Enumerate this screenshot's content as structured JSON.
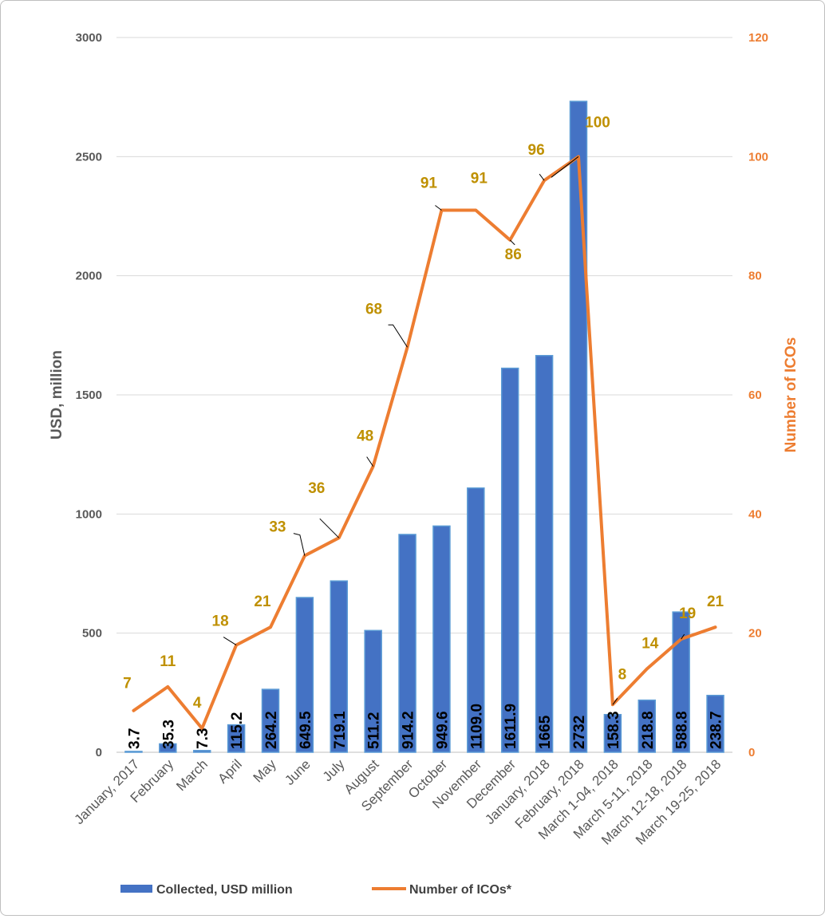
{
  "chart_data": {
    "type": "bar+line",
    "categories": [
      "January, 2017",
      "February",
      "March",
      "April",
      "May",
      "June",
      "July",
      "August",
      "September",
      "October",
      "November",
      "December",
      "January, 2018",
      "February, 2018",
      "March 1-04, 2018",
      "March 5-11, 2018",
      "March 12-18, 2018",
      "March 19-25, 2018"
    ],
    "series": [
      {
        "name": "Collected, USD million",
        "type": "bar",
        "axis": "left",
        "color": "#4472C4",
        "values": [
          3.7,
          35.3,
          7.3,
          115.2,
          264.2,
          649.5,
          719.1,
          511.2,
          914.2,
          949.6,
          1109.0,
          1611.9,
          1665,
          2732,
          158.3,
          218.8,
          588.8,
          238.7
        ],
        "labels": [
          "3.7",
          "35.3",
          "7.3",
          "115.2",
          "264.2",
          "649.5",
          "719.1",
          "511.2",
          "914.2",
          "949.6",
          "1109.0",
          "1611.9",
          "1665",
          "2732",
          "158.3",
          "218.8",
          "588.8",
          "238.7"
        ]
      },
      {
        "name": "Number of ICOs*",
        "type": "line",
        "axis": "right",
        "color": "#ED7D31",
        "values": [
          7,
          11,
          4,
          18,
          21,
          33,
          36,
          48,
          68,
          91,
          91,
          86,
          96,
          100,
          8,
          14,
          19,
          21
        ]
      }
    ],
    "ylabel": "USD, million",
    "y2label": "Number of ICOs",
    "ylim": [
      0,
      3000
    ],
    "y2lim": [
      0,
      120
    ],
    "yticks": [
      "0",
      "500",
      "1000",
      "1500",
      "2000",
      "2500",
      "3000"
    ],
    "y2ticks": [
      "0",
      "20",
      "40",
      "60",
      "80",
      "100",
      "120"
    ],
    "grid": true,
    "legend": "bottom",
    "label_color": "#BF9000",
    "axis_text_color": "#595959"
  }
}
